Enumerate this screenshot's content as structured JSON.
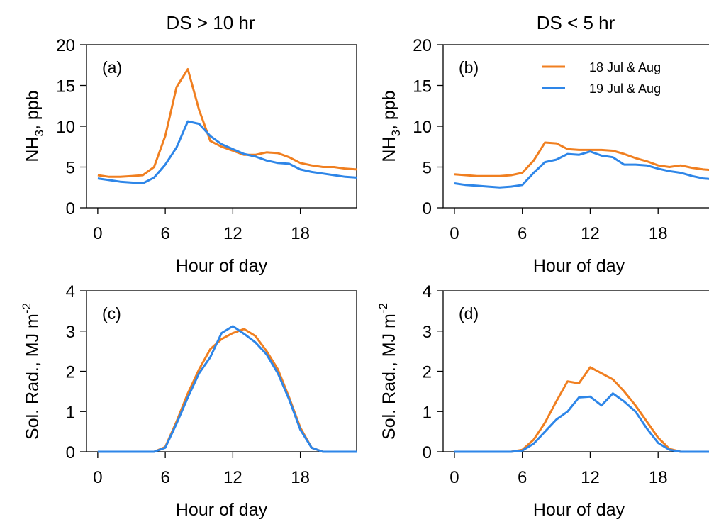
{
  "columns": [
    {
      "title": "DS > 10 hr"
    },
    {
      "title": "DS < 5 hr"
    }
  ],
  "legend": [
    {
      "name": "18 Jul & Aug",
      "color": "#F07F20"
    },
    {
      "name": "19 Jul & Aug",
      "color": "#2E86E8"
    }
  ],
  "chart_data": [
    {
      "type": "line",
      "panel_label": "(a)",
      "xlabel": "Hour of day",
      "ylabel": "NH3, ppb",
      "ylabel_main": "NH",
      "ylabel_sub": "3",
      "ylabel_rest": ", ppb",
      "xlim": [
        -1,
        23
      ],
      "ylim": [
        0,
        20
      ],
      "xticks": [
        0,
        6,
        12,
        18
      ],
      "yticks": [
        0,
        5,
        10,
        15,
        20
      ],
      "x": [
        0,
        1,
        2,
        3,
        4,
        5,
        6,
        7,
        8,
        9,
        10,
        11,
        12,
        13,
        14,
        15,
        16,
        17,
        18,
        19,
        20,
        21,
        22,
        23
      ],
      "series": [
        {
          "name": "18 Jul & Aug",
          "values": [
            4.0,
            3.8,
            3.8,
            3.9,
            4.0,
            5.0,
            8.8,
            14.8,
            17.0,
            12.0,
            8.2,
            7.5,
            7.0,
            6.5,
            6.5,
            6.8,
            6.7,
            6.2,
            5.5,
            5.2,
            5.0,
            5.0,
            4.8,
            4.7
          ]
        },
        {
          "name": "19 Jul & Aug",
          "values": [
            3.6,
            3.4,
            3.2,
            3.1,
            3.0,
            3.7,
            5.3,
            7.4,
            10.6,
            10.3,
            8.8,
            7.8,
            7.2,
            6.6,
            6.3,
            5.8,
            5.5,
            5.4,
            4.7,
            4.4,
            4.2,
            4.0,
            3.8,
            3.7
          ]
        }
      ]
    },
    {
      "type": "line",
      "panel_label": "(b)",
      "xlabel": "Hour of day",
      "ylabel": "NH3, ppb",
      "ylabel_main": "NH",
      "ylabel_sub": "3",
      "ylabel_rest": ", ppb",
      "xlim": [
        -1,
        23
      ],
      "ylim": [
        0,
        20
      ],
      "xticks": [
        0,
        6,
        12,
        18
      ],
      "yticks": [
        0,
        5,
        10,
        15,
        20
      ],
      "x": [
        0,
        1,
        2,
        3,
        4,
        5,
        6,
        7,
        8,
        9,
        10,
        11,
        12,
        13,
        14,
        15,
        16,
        17,
        18,
        19,
        20,
        21,
        22,
        23
      ],
      "series": [
        {
          "name": "18 Jul & Aug",
          "values": [
            4.1,
            4.0,
            3.9,
            3.9,
            3.9,
            4.0,
            4.3,
            5.8,
            8.0,
            7.9,
            7.2,
            7.1,
            7.1,
            7.1,
            7.0,
            6.6,
            6.1,
            5.7,
            5.2,
            5.0,
            5.2,
            4.9,
            4.7,
            4.6
          ]
        },
        {
          "name": "19 Jul & Aug",
          "values": [
            3.0,
            2.8,
            2.7,
            2.6,
            2.5,
            2.6,
            2.8,
            4.3,
            5.6,
            5.9,
            6.6,
            6.5,
            6.9,
            6.4,
            6.2,
            5.3,
            5.3,
            5.2,
            4.8,
            4.5,
            4.3,
            3.9,
            3.6,
            3.5
          ]
        }
      ]
    },
    {
      "type": "line",
      "panel_label": "(c)",
      "xlabel": "Hour of day",
      "ylabel": "Sol. Rad., MJ m-2",
      "ylabel_main": "Sol. Rad., MJ m",
      "ylabel_sup": "-2",
      "xlim": [
        -1,
        23
      ],
      "ylim": [
        0,
        4
      ],
      "xticks": [
        0,
        6,
        12,
        18
      ],
      "yticks": [
        0,
        1,
        2,
        3,
        4
      ],
      "x": [
        0,
        1,
        2,
        3,
        4,
        5,
        6,
        7,
        8,
        9,
        10,
        11,
        12,
        13,
        14,
        15,
        16,
        17,
        18,
        19,
        20,
        21,
        22,
        23
      ],
      "series": [
        {
          "name": "18 Jul & Aug",
          "values": [
            0,
            0,
            0,
            0,
            0,
            0,
            0.12,
            0.75,
            1.45,
            2.05,
            2.55,
            2.8,
            2.95,
            3.05,
            2.88,
            2.5,
            2.05,
            1.35,
            0.6,
            0.1,
            0,
            0,
            0,
            0
          ]
        },
        {
          "name": "19 Jul & Aug",
          "values": [
            0,
            0,
            0,
            0,
            0,
            0,
            0.1,
            0.7,
            1.35,
            1.95,
            2.35,
            2.95,
            3.12,
            2.93,
            2.72,
            2.42,
            1.95,
            1.3,
            0.55,
            0.1,
            0,
            0,
            0,
            0
          ]
        }
      ]
    },
    {
      "type": "line",
      "panel_label": "(d)",
      "xlabel": "Hour of day",
      "ylabel": "Sol. Rad., MJ m-2",
      "ylabel_main": "Sol. Rad., MJ m",
      "ylabel_sup": "-2",
      "xlim": [
        -1,
        23
      ],
      "ylim": [
        0,
        4
      ],
      "xticks": [
        0,
        6,
        12,
        18
      ],
      "yticks": [
        0,
        1,
        2,
        3,
        4
      ],
      "x": [
        0,
        1,
        2,
        3,
        4,
        5,
        6,
        7,
        8,
        9,
        10,
        11,
        12,
        13,
        14,
        15,
        16,
        17,
        18,
        19,
        20,
        21,
        22,
        23
      ],
      "series": [
        {
          "name": "18 Jul & Aug",
          "values": [
            0,
            0,
            0,
            0,
            0,
            0,
            0.05,
            0.3,
            0.72,
            1.25,
            1.75,
            1.7,
            2.1,
            1.95,
            1.8,
            1.5,
            1.15,
            0.75,
            0.35,
            0.07,
            0,
            0,
            0,
            0
          ]
        },
        {
          "name": "19 Jul & Aug",
          "values": [
            0,
            0,
            0,
            0,
            0,
            0,
            0.03,
            0.2,
            0.5,
            0.8,
            1.0,
            1.35,
            1.37,
            1.15,
            1.45,
            1.25,
            1.0,
            0.58,
            0.22,
            0.05,
            0,
            0,
            0,
            0
          ]
        }
      ]
    }
  ]
}
